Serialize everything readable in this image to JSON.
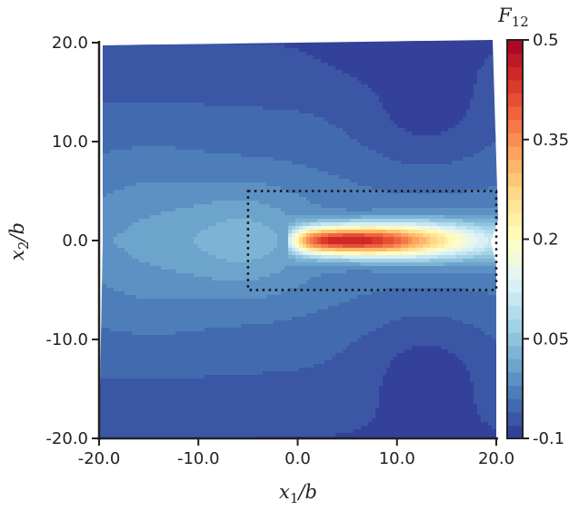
{
  "chart_data": {
    "type": "heatmap",
    "title": "",
    "xlabel": {
      "var": "x",
      "sub": "1",
      "suffix": "/b"
    },
    "ylabel": {
      "var": "x",
      "sub": "2",
      "suffix": "/b"
    },
    "xlim": [
      -20,
      20
    ],
    "ylim": [
      -20,
      20
    ],
    "x_ticks": [
      -20,
      -10,
      0,
      10,
      20
    ],
    "y_ticks": [
      -20,
      -10,
      0,
      10,
      20
    ],
    "x_tick_labels": [
      "-20.0",
      "-10.0",
      "0.0",
      "10.0",
      "20.0"
    ],
    "y_tick_labels": [
      "-20.0",
      "-10.0",
      "0.0",
      "10.0",
      "20.0"
    ],
    "colorbar": {
      "label": {
        "var": "F",
        "sub": "12"
      },
      "min": -0.1,
      "max": 0.5,
      "ticks": [
        -0.1,
        0.05,
        0.2,
        0.35,
        0.5
      ],
      "tick_labels": [
        "-0.1",
        "0.05",
        "0.2",
        "0.35",
        "0.5"
      ],
      "levels": 30,
      "colormap": "RdYlBu_r"
    },
    "field_description": "shear deformation gradient component F12 concentrated in a band along x2=0 for x1 between 0 and 20, peak near x1=5",
    "field_peak": 0.42,
    "background_level": -0.02,
    "region_box": {
      "x": [
        -5,
        20
      ],
      "y": [
        -5,
        5
      ],
      "style": "dotted"
    }
  }
}
